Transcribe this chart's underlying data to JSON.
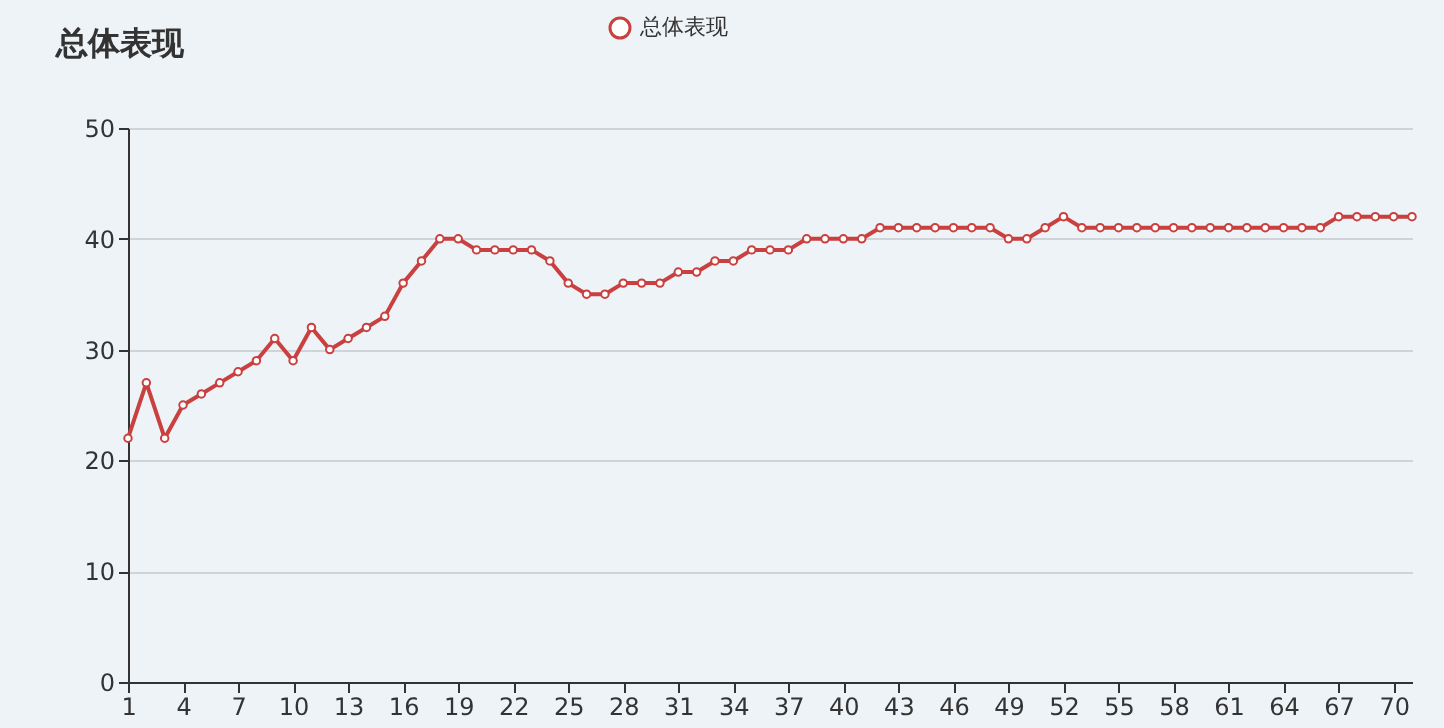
{
  "chart_data": {
    "type": "line",
    "title": "总体表现",
    "categories": [
      "1",
      null,
      null,
      "4",
      null,
      null,
      "7",
      null,
      null,
      "10",
      null,
      null,
      "13",
      null,
      null,
      "16",
      null,
      null,
      "19",
      null,
      null,
      "22",
      null,
      null,
      "25",
      null,
      null,
      "28",
      null,
      null,
      "31",
      null,
      null,
      "34",
      null,
      null,
      "37",
      null,
      null,
      "40",
      null,
      null,
      "43",
      null,
      null,
      "46",
      null,
      null,
      "49",
      null,
      null,
      "52",
      null,
      null,
      "55",
      null,
      null,
      "58",
      null,
      null,
      "61",
      null,
      null,
      "64",
      null,
      null,
      "67",
      null,
      null,
      "70",
      null
    ],
    "series": [
      {
        "name": "总体表现",
        "color": "#c9403f",
        "values": [
          22,
          27,
          22,
          25,
          26,
          27,
          28,
          29,
          31,
          29,
          32,
          30,
          31,
          32,
          33,
          36,
          38,
          40,
          40,
          39,
          39,
          39,
          39,
          38,
          36,
          35,
          35,
          36,
          36,
          36,
          37,
          37,
          38,
          38,
          39,
          39,
          39,
          40,
          40,
          40,
          40,
          41,
          41,
          41,
          41,
          41,
          41,
          41,
          40,
          40,
          41,
          42,
          41,
          41,
          41,
          41,
          41,
          41,
          41,
          41,
          41,
          41,
          41,
          41,
          41,
          41,
          42,
          42,
          42,
          42,
          42
        ]
      }
    ],
    "ylim": [
      0,
      50
    ],
    "yticks": [
      0,
      10,
      20,
      30,
      40,
      50
    ],
    "grid": "y",
    "legend": "top",
    "marker": "circle",
    "line_style": "solid"
  }
}
